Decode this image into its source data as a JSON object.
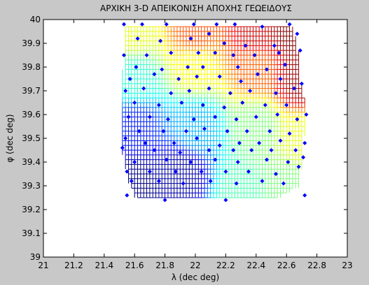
{
  "window": {
    "background": "#c8c8c8"
  },
  "chart_data": {
    "type": "scatter",
    "title": "ΑΡΧΙΚΗ 3-D ΑΠΕΙΚΟΝΙΣΗ ΑΠΟΧΗΣ ΓΕΩΕΙΔΟΥΣ",
    "xlabel": "λ (dec deg)",
    "ylabel": "φ (dec deg)",
    "xlim": [
      21,
      23
    ],
    "ylim": [
      39,
      40
    ],
    "xticks": [
      21,
      21.2,
      21.4,
      21.6,
      21.8,
      22,
      22.2,
      22.4,
      22.6,
      22.8,
      23
    ],
    "yticks": [
      39,
      39.1,
      39.2,
      39.3,
      39.4,
      39.5,
      39.6,
      39.7,
      39.8,
      39.9,
      40
    ],
    "xtick_labels": [
      "21",
      "21.2",
      "21.4",
      "21.6",
      "21.8",
      "22",
      "22.2",
      "22.4",
      "22.6",
      "22.8",
      "23"
    ],
    "ytick_labels": [
      "39",
      "39.1",
      "39.2",
      "39.3",
      "39.4",
      "39.5",
      "39.6",
      "39.7",
      "39.8",
      "39.9",
      "40"
    ],
    "grid": false,
    "mesh": {
      "description_hidden": true,
      "x_range": [
        21.52,
        22.73
      ],
      "y_range": [
        39.25,
        39.97
      ],
      "step": 0.02,
      "colormap": "jet",
      "boundary_left": [
        [
          39.25,
          21.61
        ],
        [
          39.3,
          21.57
        ],
        [
          39.35,
          21.55
        ],
        [
          39.45,
          21.52
        ],
        [
          39.55,
          21.52
        ],
        [
          39.65,
          21.52
        ],
        [
          39.75,
          21.52
        ],
        [
          39.85,
          21.53
        ],
        [
          39.97,
          21.53
        ]
      ],
      "boundary_right": [
        [
          39.25,
          22.54
        ],
        [
          39.3,
          22.68
        ],
        [
          39.4,
          22.7
        ],
        [
          39.55,
          22.72
        ],
        [
          39.65,
          22.72
        ],
        [
          39.7,
          22.71
        ],
        [
          39.75,
          22.69
        ],
        [
          39.85,
          22.68
        ],
        [
          39.92,
          22.66
        ],
        [
          39.97,
          22.63
        ]
      ],
      "color_anchors": [
        {
          "x": 21.6,
          "y": 39.3,
          "level": 0.0
        },
        {
          "x": 21.9,
          "y": 39.35,
          "level": 0.03
        },
        {
          "x": 22.3,
          "y": 39.28,
          "level": 0.45
        },
        {
          "x": 22.6,
          "y": 39.3,
          "level": 0.5
        },
        {
          "x": 21.6,
          "y": 39.55,
          "level": 0.15
        },
        {
          "x": 22.0,
          "y": 39.55,
          "level": 0.3
        },
        {
          "x": 22.4,
          "y": 39.55,
          "level": 0.5
        },
        {
          "x": 22.7,
          "y": 39.5,
          "level": 0.6
        },
        {
          "x": 21.6,
          "y": 39.75,
          "level": 0.42
        },
        {
          "x": 22.0,
          "y": 39.8,
          "level": 0.62
        },
        {
          "x": 22.4,
          "y": 39.8,
          "level": 0.78
        },
        {
          "x": 22.7,
          "y": 39.75,
          "level": 0.98
        },
        {
          "x": 21.6,
          "y": 39.95,
          "level": 0.6
        },
        {
          "x": 22.0,
          "y": 39.95,
          "level": 0.8
        },
        {
          "x": 22.4,
          "y": 39.95,
          "level": 0.93
        },
        {
          "x": 22.65,
          "y": 39.95,
          "level": 1.0
        }
      ]
    },
    "points_color": "#0000ff",
    "points": [
      [
        21.53,
        39.98
      ],
      [
        21.65,
        39.98
      ],
      [
        21.81,
        39.98
      ],
      [
        21.99,
        39.98
      ],
      [
        22.14,
        39.98
      ],
      [
        22.26,
        39.98
      ],
      [
        22.44,
        39.97
      ],
      [
        22.62,
        39.98
      ],
      [
        21.62,
        39.92
      ],
      [
        21.77,
        39.91
      ],
      [
        21.97,
        39.92
      ],
      [
        22.09,
        39.94
      ],
      [
        22.19,
        39.9
      ],
      [
        22.33,
        39.89
      ],
      [
        22.52,
        39.89
      ],
      [
        22.67,
        39.94
      ],
      [
        21.53,
        39.85
      ],
      [
        21.68,
        39.85
      ],
      [
        21.84,
        39.86
      ],
      [
        22.02,
        39.86
      ],
      [
        22.13,
        39.86
      ],
      [
        22.25,
        39.85
      ],
      [
        22.39,
        39.85
      ],
      [
        22.55,
        39.86
      ],
      [
        22.69,
        39.87
      ],
      [
        21.61,
        39.8
      ],
      [
        21.78,
        39.79
      ],
      [
        21.95,
        39.8
      ],
      [
        22.05,
        39.8
      ],
      [
        22.28,
        39.8
      ],
      [
        22.47,
        39.79
      ],
      [
        22.59,
        39.81
      ],
      [
        21.57,
        39.75
      ],
      [
        21.73,
        39.77
      ],
      [
        21.89,
        39.75
      ],
      [
        22.01,
        39.76
      ],
      [
        22.16,
        39.76
      ],
      [
        22.3,
        39.74
      ],
      [
        22.41,
        39.77
      ],
      [
        22.56,
        39.75
      ],
      [
        22.7,
        39.73
      ],
      [
        21.54,
        39.7
      ],
      [
        21.66,
        39.71
      ],
      [
        21.84,
        39.69
      ],
      [
        21.96,
        39.7
      ],
      [
        22.09,
        39.71
      ],
      [
        22.23,
        39.69
      ],
      [
        22.36,
        39.7
      ],
      [
        22.53,
        39.69
      ],
      [
        22.65,
        39.71
      ],
      [
        21.6,
        39.65
      ],
      [
        21.76,
        39.64
      ],
      [
        21.91,
        39.65
      ],
      [
        22.05,
        39.64
      ],
      [
        22.19,
        39.63
      ],
      [
        22.31,
        39.65
      ],
      [
        22.46,
        39.64
      ],
      [
        22.6,
        39.64
      ],
      [
        22.73,
        39.6
      ],
      [
        21.56,
        39.59
      ],
      [
        21.7,
        39.59
      ],
      [
        21.82,
        39.58
      ],
      [
        21.99,
        39.58
      ],
      [
        22.13,
        39.59
      ],
      [
        22.27,
        39.58
      ],
      [
        22.4,
        39.59
      ],
      [
        22.54,
        39.6
      ],
      [
        22.67,
        39.58
      ],
      [
        21.63,
        39.53
      ],
      [
        21.79,
        39.53
      ],
      [
        21.94,
        39.53
      ],
      [
        22.06,
        39.54
      ],
      [
        22.21,
        39.53
      ],
      [
        22.34,
        39.53
      ],
      [
        22.49,
        39.53
      ],
      [
        22.62,
        39.52
      ],
      [
        21.54,
        39.5
      ],
      [
        21.67,
        39.48
      ],
      [
        21.86,
        39.48
      ],
      [
        22.01,
        39.5
      ],
      [
        22.16,
        39.47
      ],
      [
        22.29,
        39.48
      ],
      [
        22.42,
        39.48
      ],
      [
        22.56,
        39.49
      ],
      [
        22.72,
        39.48
      ],
      [
        21.52,
        39.46
      ],
      [
        21.73,
        39.45
      ],
      [
        21.9,
        39.44
      ],
      [
        22.09,
        39.45
      ],
      [
        22.25,
        39.45
      ],
      [
        22.37,
        39.45
      ],
      [
        22.5,
        39.45
      ],
      [
        22.66,
        39.45
      ],
      [
        21.6,
        39.4
      ],
      [
        21.81,
        39.41
      ],
      [
        21.97,
        39.4
      ],
      [
        22.13,
        39.41
      ],
      [
        22.28,
        39.4
      ],
      [
        22.47,
        39.41
      ],
      [
        22.61,
        39.4
      ],
      [
        22.71,
        39.42
      ],
      [
        21.55,
        39.36
      ],
      [
        21.7,
        39.36
      ],
      [
        21.87,
        39.36
      ],
      [
        22.04,
        39.36
      ],
      [
        22.2,
        39.36
      ],
      [
        22.35,
        39.36
      ],
      [
        22.53,
        39.35
      ],
      [
        22.68,
        39.38
      ],
      [
        21.58,
        39.32
      ],
      [
        21.76,
        39.32
      ],
      [
        21.92,
        39.31
      ],
      [
        22.1,
        39.32
      ],
      [
        22.27,
        39.31
      ],
      [
        22.44,
        39.32
      ],
      [
        22.58,
        39.31
      ],
      [
        21.55,
        39.26
      ],
      [
        21.8,
        39.24
      ],
      [
        22.2,
        39.24
      ],
      [
        22.72,
        39.26
      ]
    ]
  }
}
